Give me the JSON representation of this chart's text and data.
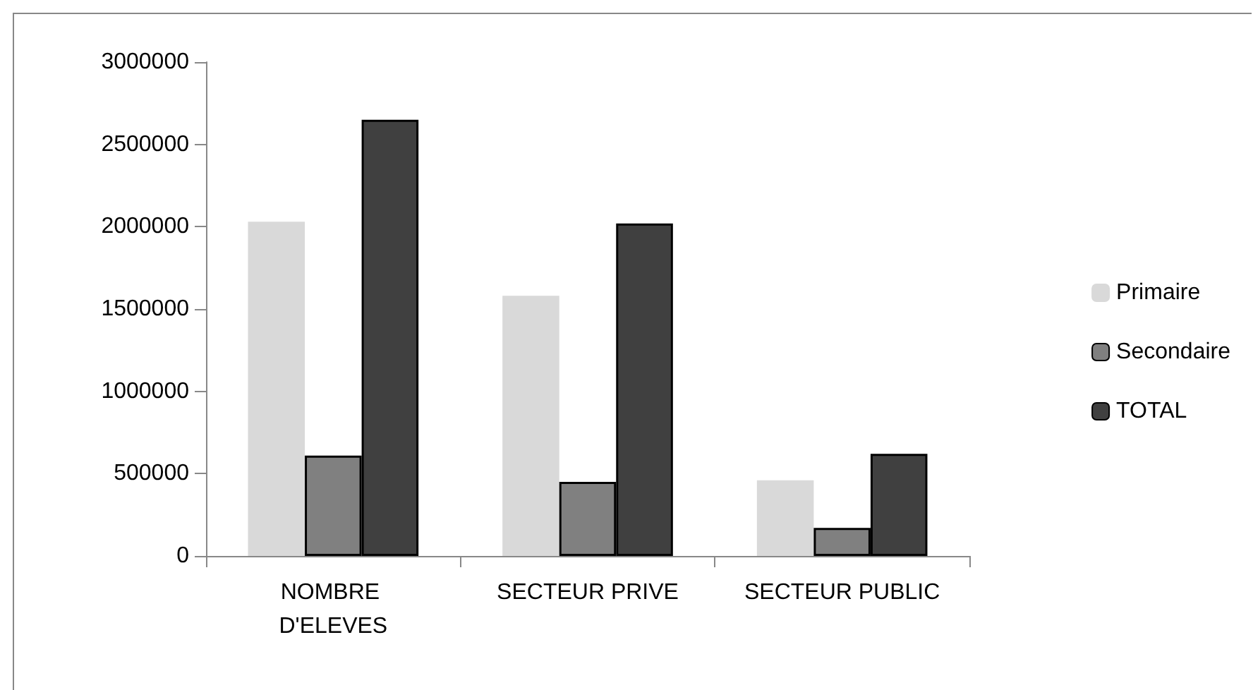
{
  "chart_data": {
    "type": "bar",
    "categories": [
      "NOMBRE D'ELEVES",
      "SECTEUR PRIVE",
      "SECTEUR PUBLIC"
    ],
    "series": [
      {
        "name": "Primaire",
        "color": "#d9d9d9",
        "values": [
          2030000,
          1580000,
          460000
        ]
      },
      {
        "name": "Secondaire",
        "color": "#808080",
        "values": [
          610000,
          450000,
          170000
        ]
      },
      {
        "name": "TOTAL",
        "color": "#404040",
        "values": [
          2650000,
          2020000,
          620000
        ]
      }
    ],
    "ylim": [
      0,
      3000000
    ],
    "yticks": [
      0,
      500000,
      1000000,
      1500000,
      2000000,
      2500000,
      3000000
    ],
    "grid": false,
    "legend": "right"
  }
}
